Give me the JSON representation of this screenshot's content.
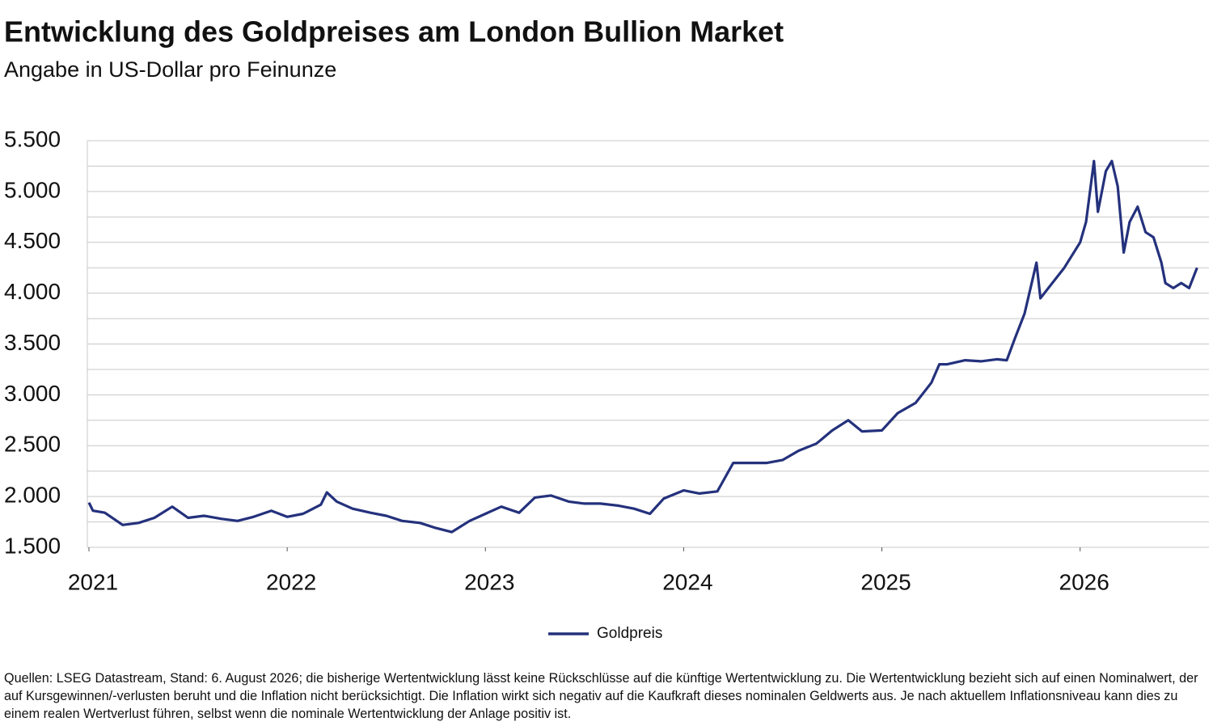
{
  "chart_data": {
    "type": "line",
    "title": "Entwicklung des Goldpreises am London Bullion Market",
    "subtitle": "Angabe in US-Dollar pro Feinunze",
    "x": [
      2021.0,
      2021.02,
      2021.08,
      2021.17,
      2021.25,
      2021.33,
      2021.42,
      2021.5,
      2021.58,
      2021.67,
      2021.75,
      2021.83,
      2021.92,
      2022.0,
      2022.08,
      2022.17,
      2022.2,
      2022.25,
      2022.33,
      2022.42,
      2022.5,
      2022.58,
      2022.67,
      2022.75,
      2022.83,
      2022.92,
      2023.0,
      2023.08,
      2023.17,
      2023.25,
      2023.33,
      2023.42,
      2023.5,
      2023.58,
      2023.67,
      2023.75,
      2023.83,
      2023.9,
      2024.0,
      2024.08,
      2024.17,
      2024.25,
      2024.33,
      2024.42,
      2024.5,
      2024.58,
      2024.67,
      2024.75,
      2024.83,
      2024.9,
      2025.0,
      2025.08,
      2025.17,
      2025.25,
      2025.29,
      2025.33,
      2025.42,
      2025.5,
      2025.58,
      2025.63,
      2025.67,
      2025.72,
      2025.78,
      2025.8,
      2025.84,
      2025.92,
      2026.0,
      2026.03,
      2026.07,
      2026.09,
      2026.13,
      2026.16,
      2026.19,
      2026.22,
      2026.25,
      2026.29,
      2026.33,
      2026.37,
      2026.41,
      2026.43,
      2026.47,
      2026.51,
      2026.55,
      2026.59
    ],
    "series": [
      {
        "name": "Goldpreis",
        "color": "#24317c",
        "values": [
          1940,
          1860,
          1840,
          1720,
          1740,
          1790,
          1900,
          1790,
          1810,
          1780,
          1760,
          1800,
          1860,
          1800,
          1830,
          1920,
          2040,
          1950,
          1880,
          1840,
          1810,
          1760,
          1740,
          1690,
          1650,
          1760,
          1830,
          1900,
          1840,
          1990,
          2010,
          1950,
          1930,
          1930,
          1910,
          1880,
          1830,
          1980,
          2060,
          2030,
          2050,
          2330,
          2330,
          2330,
          2360,
          2450,
          2520,
          2650,
          2750,
          2640,
          2650,
          2820,
          2920,
          3120,
          3300,
          3300,
          3340,
          3330,
          3350,
          3340,
          3550,
          3800,
          4300,
          3950,
          4050,
          4250,
          4500,
          4700,
          5300,
          4800,
          5200,
          5300,
          5050,
          4400,
          4700,
          4850,
          4600,
          4550,
          4300,
          4100,
          4050,
          4100,
          4050,
          4250
        ]
      }
    ],
    "xlim": [
      2021,
      2026.65
    ],
    "xticks": [
      2021,
      2022,
      2023,
      2024,
      2025,
      2026
    ],
    "ylim": [
      1500,
      5500
    ],
    "yticks": [
      {
        "value": 1500,
        "label": "1.500"
      },
      {
        "value": 2000,
        "label": "2.000"
      },
      {
        "value": 2500,
        "label": "2.500"
      },
      {
        "value": 3000,
        "label": "3.000"
      },
      {
        "value": 3500,
        "label": "3.500"
      },
      {
        "value": 4000,
        "label": "4.000"
      },
      {
        "value": 4500,
        "label": "4.500"
      },
      {
        "value": 5000,
        "label": "5.000"
      },
      {
        "value": 5500,
        "label": "5.500"
      }
    ],
    "y_gridlines": [
      1750,
      2250,
      2750,
      3250,
      3750,
      4250,
      4750,
      5250
    ],
    "grid": true,
    "legend": "bottom",
    "footnote": "Quellen: LSEG Datastream, Stand: 6. August 2026; die bisherige Wertentwicklung lässt keine Rückschlüsse auf die künftige Wertentwicklung zu. Die Wertentwicklung bezieht sich auf einen Nominalwert, der auf Kursgewinnen/-verlusten beruht und die Inflation nicht berücksichtigt. Die Inflation wirkt sich negativ auf die Kaufkraft dieses nominalen Geldwerts aus. Je nach aktuellem Inflationsniveau kann dies zu einem realen Wertverlust führen, selbst wenn die nominale Wertentwicklung der Anlage positiv ist."
  }
}
